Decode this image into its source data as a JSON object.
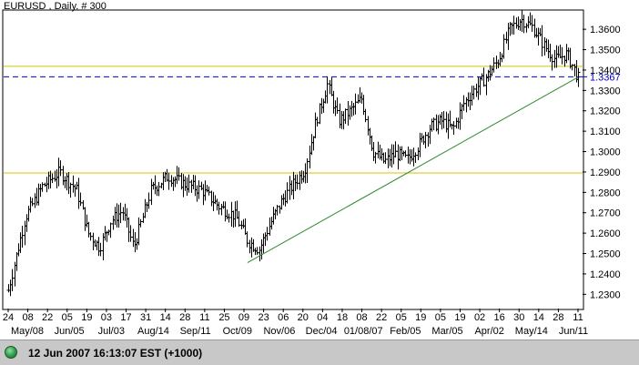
{
  "chart_data": {
    "type": "ohlc",
    "title": "EURUSD , Daily, # 300",
    "y_axis": {
      "ticks": [
        "1.3600",
        "1.3500",
        "1.3400",
        "1.3300",
        "1.3200",
        "1.3100",
        "1.3000",
        "1.2900",
        "1.2800",
        "1.2700",
        "1.2600",
        "1.2500",
        "1.2400",
        "1.2300"
      ],
      "range": [
        1.223,
        1.369
      ]
    },
    "x_axis": {
      "day_labels": [
        "24",
        "08",
        "22",
        "05",
        "19",
        "03",
        "17",
        "31",
        "14",
        "28",
        "11",
        "25",
        "09",
        "23",
        "06",
        "20",
        "04",
        "18",
        "08",
        "22",
        "05",
        "19",
        "05",
        "19",
        "02",
        "16",
        "30",
        "14",
        "28",
        "11"
      ],
      "month_labels": [
        "May/08",
        "Jun/05",
        "Jul/03",
        "Aug/14",
        "Sep/11",
        "Oct/09",
        "Nov/06",
        "Dec/04",
        "01/08/07",
        "Feb/05",
        "Mar/05",
        "Apr/02",
        "May/14",
        "Jun/11"
      ]
    },
    "current_price": {
      "label": "1.3367",
      "value": 1.3367
    },
    "horizontal_levels": [
      1.3418,
      1.2895
    ],
    "trendline": {
      "start": {
        "bar": 0.42,
        "value": 1.2455
      },
      "end": {
        "bar": 1.0,
        "value": 1.3365
      }
    },
    "anchor_closes": [
      [
        0,
        1.232
      ],
      [
        0.03,
        1.268
      ],
      [
        0.06,
        1.283
      ],
      [
        0.09,
        1.29
      ],
      [
        0.12,
        1.281
      ],
      [
        0.14,
        1.26
      ],
      [
        0.16,
        1.253
      ],
      [
        0.18,
        1.266
      ],
      [
        0.2,
        1.271
      ],
      [
        0.22,
        1.253
      ],
      [
        0.25,
        1.281
      ],
      [
        0.28,
        1.288
      ],
      [
        0.31,
        1.284
      ],
      [
        0.34,
        1.281
      ],
      [
        0.37,
        1.273
      ],
      [
        0.4,
        1.268
      ],
      [
        0.42,
        1.256
      ],
      [
        0.44,
        1.252
      ],
      [
        0.46,
        1.265
      ],
      [
        0.48,
        1.276
      ],
      [
        0.5,
        1.284
      ],
      [
        0.52,
        1.291
      ],
      [
        0.54,
        1.315
      ],
      [
        0.56,
        1.333
      ],
      [
        0.58,
        1.315
      ],
      [
        0.6,
        1.32
      ],
      [
        0.62,
        1.326
      ],
      [
        0.64,
        1.3
      ],
      [
        0.66,
        1.295
      ],
      [
        0.68,
        1.299
      ],
      [
        0.7,
        1.296
      ],
      [
        0.72,
        1.303
      ],
      [
        0.74,
        1.312
      ],
      [
        0.76,
        1.315
      ],
      [
        0.78,
        1.311
      ],
      [
        0.8,
        1.324
      ],
      [
        0.82,
        1.331
      ],
      [
        0.84,
        1.337
      ],
      [
        0.86,
        1.345
      ],
      [
        0.88,
        1.36
      ],
      [
        0.9,
        1.365
      ],
      [
        0.92,
        1.361
      ],
      [
        0.94,
        1.352
      ],
      [
        0.96,
        1.345
      ],
      [
        0.98,
        1.348
      ],
      [
        1.0,
        1.336
      ]
    ],
    "grid": false,
    "bar_color": "#000000",
    "level_color": "#d4c400",
    "current_line_color": "#0000cc",
    "trendline_color": "#2e8b2e"
  },
  "status": {
    "text": "12 Jun 2007 16:13:07  EST (+1000)"
  }
}
